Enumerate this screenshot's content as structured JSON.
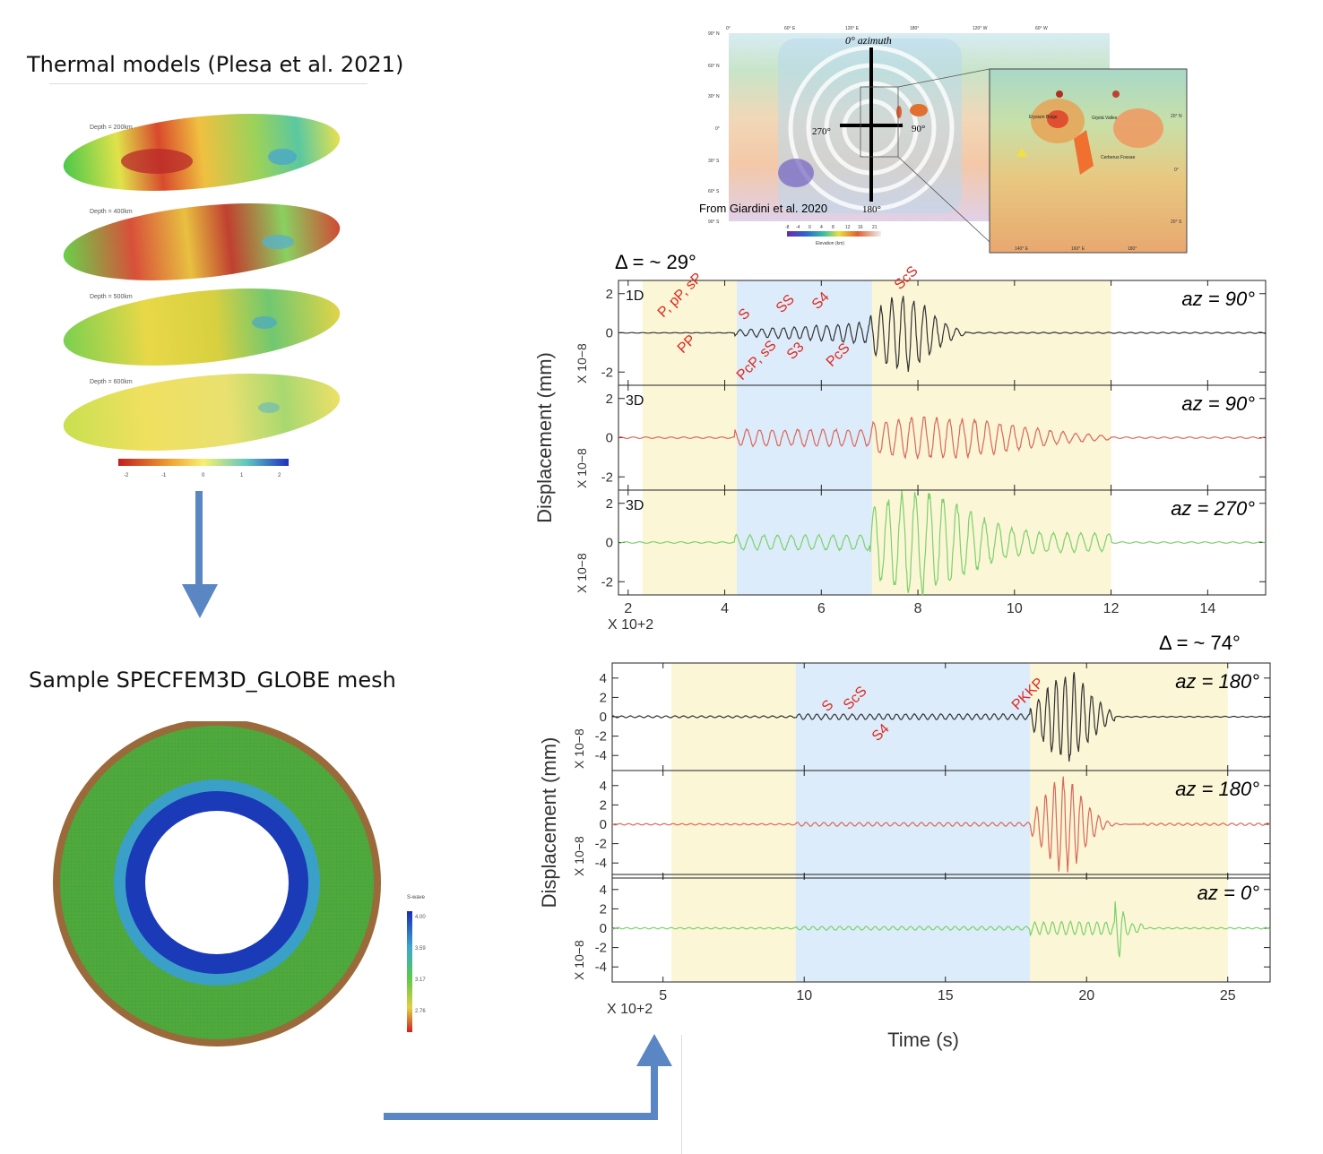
{
  "left": {
    "thermal_title": "Thermal models (Plesa et al. 2021)",
    "depth_labels": [
      "Depth = 200km",
      "Depth = 400km",
      "Depth = 500km",
      "Depth = 600km"
    ],
    "colorbar_ticks": [
      "-2",
      "-1",
      "0",
      "1",
      "2"
    ],
    "mesh_title": "Sample SPECFEM3D_GLOBE mesh",
    "mesh_legend_title": "S-wave",
    "mesh_legend_ticks": [
      "4.00",
      "3.59",
      "3.17",
      "2.76"
    ]
  },
  "map": {
    "lon_ticks_top": [
      "0°",
      "60° E",
      "120° E",
      "180°",
      "120° W",
      "60° W"
    ],
    "lat_ticks": [
      "90° N",
      "60° N",
      "30° N",
      "0°",
      "30° S",
      "60° S",
      "90° S"
    ],
    "azimuth_label": "0° azimuth",
    "az_270": "270°",
    "az_90": "90°",
    "az_180": "180°",
    "credit": "From Giardini et al. 2020",
    "elev_ticks": [
      "-8",
      "-4",
      "0",
      "4",
      "8",
      "12",
      "16",
      "21"
    ],
    "elev_label": "Elevation (km)",
    "inset_labels": [
      "Elysium Bulge",
      "Grjotá Valles",
      "Cerberus Fossae"
    ],
    "inset_lat": [
      "20° N",
      "0°",
      "20° S"
    ],
    "inset_lon": [
      "140° E",
      "160° E",
      "180°"
    ]
  },
  "chart_data": [
    {
      "type": "line",
      "title": "Δ = ~ 29°",
      "ylabel": "Displacement (mm)",
      "ytick_scale": "X 10−8",
      "xtick_scale": "X 10+2",
      "xticks": [
        "2",
        "4",
        "6",
        "8",
        "10",
        "12",
        "14"
      ],
      "yticks": [
        "2",
        "0",
        "-2"
      ],
      "xlim": [
        1.8,
        15.2
      ],
      "shaded_regions": [
        {
          "from": 2.3,
          "to": 4.25,
          "color": "#fbf6d6"
        },
        {
          "from": 4.25,
          "to": 7.05,
          "color": "#dcecfa"
        },
        {
          "from": 7.05,
          "to": 12.0,
          "color": "#fbf6d6"
        }
      ],
      "series": [
        {
          "model": "1D",
          "azimuth": "az = 90°",
          "color": "#333333"
        },
        {
          "model": "3D",
          "azimuth": "az = 90°",
          "color": "#d9675a"
        },
        {
          "model": "3D",
          "azimuth": "az = 270°",
          "color": "#7bd16b"
        }
      ],
      "phase_labels": [
        "P, pP, sP",
        "PP",
        "S",
        "PcP, sS",
        "SS",
        "S3",
        "S4",
        "PcS",
        "ScS"
      ]
    },
    {
      "type": "line",
      "title": "Δ = ~ 74°",
      "ylabel": "Displacement (mm)",
      "ytick_scale": "X 10−8",
      "xtick_scale": "X 10+2",
      "xticks": [
        "5",
        "10",
        "15",
        "20",
        "25"
      ],
      "yticks": [
        "4",
        "2",
        "0",
        "-2",
        "-4"
      ],
      "xlim": [
        3.2,
        26.5
      ],
      "xlabel": "Time (s)",
      "shaded_regions": [
        {
          "from": 5.3,
          "to": 9.7,
          "color": "#fbf6d6"
        },
        {
          "from": 9.7,
          "to": 18.0,
          "color": "#dcecfa"
        },
        {
          "from": 18.0,
          "to": 25.0,
          "color": "#fbf6d6"
        }
      ],
      "series": [
        {
          "azimuth": "az = 180°",
          "color": "#333333"
        },
        {
          "azimuth": "az = 180°",
          "color": "#d9675a"
        },
        {
          "azimuth": "az = 0°",
          "color": "#7bd16b"
        }
      ],
      "phase_labels": [
        "S",
        "ScS",
        "S4",
        "PKKP"
      ]
    }
  ],
  "colors": {
    "arrow": "#5b86c4",
    "phase_label": "#e0281f"
  }
}
